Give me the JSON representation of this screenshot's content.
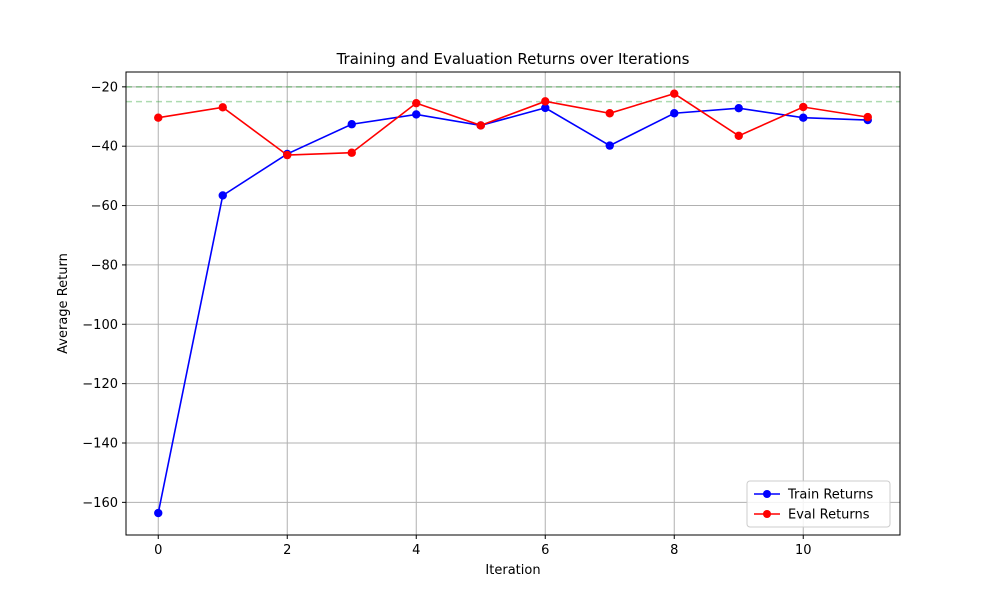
{
  "chart_data": {
    "type": "line",
    "title": "Training and Evaluation Returns over Iterations",
    "xlabel": "Iteration",
    "ylabel": "Average Return",
    "xlim": [
      -0.5,
      11.5
    ],
    "ylim": [
      -171,
      -15
    ],
    "xticks": [
      0,
      2,
      4,
      6,
      8,
      10
    ],
    "yticks": [
      -160,
      -140,
      -120,
      -100,
      -80,
      -60,
      -40,
      -20
    ],
    "grid": true,
    "legend_position": "lower right",
    "x": [
      0,
      1,
      2,
      3,
      4,
      5,
      6,
      7,
      8,
      9,
      10,
      11
    ],
    "series": [
      {
        "name": "Train Returns",
        "color": "#0000ff",
        "marker": "circle",
        "values": [
          -163.6,
          -56.6,
          -42.6,
          -32.6,
          -29.3,
          -33.0,
          -27.1,
          -39.8,
          -28.9,
          -27.2,
          -30.4,
          -31.2
        ]
      },
      {
        "name": "Eval Returns",
        "color": "#ff0000",
        "marker": "circle",
        "values": [
          -30.4,
          -26.9,
          -43.0,
          -42.2,
          -25.5,
          -33.0,
          -24.9,
          -28.9,
          -22.3,
          -36.5,
          -26.8,
          -30.2
        ]
      }
    ],
    "reference_lines": [
      {
        "y": -20,
        "color": "#4caf50",
        "style": "dashed",
        "opacity": 0.55
      },
      {
        "y": -25,
        "color": "#4caf50",
        "style": "dashed",
        "opacity": 0.45
      }
    ]
  }
}
